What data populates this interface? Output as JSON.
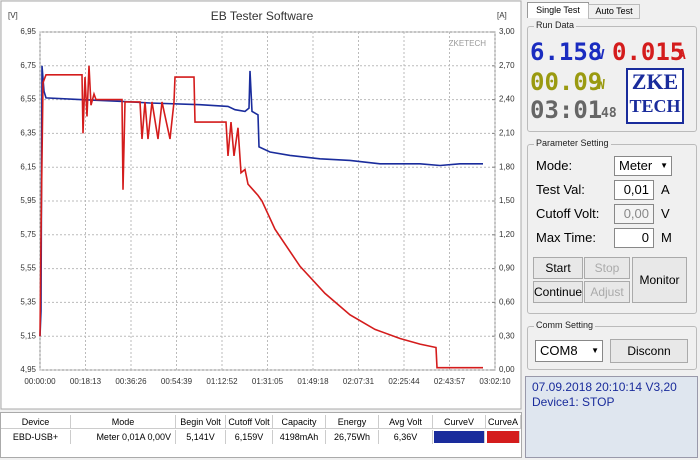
{
  "chart_data": {
    "type": "line",
    "title": "EB Tester Software",
    "y_label": "[V]",
    "y2_label": "[A]",
    "watermark": "ZKETECH",
    "xlim": [
      0,
      10930
    ],
    "xticks": [
      {
        "value": 0,
        "label": "00:00:00"
      },
      {
        "value": 1093,
        "label": "00:18:13"
      },
      {
        "value": 2186,
        "label": "00:36:26"
      },
      {
        "value": 3279,
        "label": "00:54:39"
      },
      {
        "value": 4372,
        "label": "01:12:52"
      },
      {
        "value": 5465,
        "label": "01:31:05"
      },
      {
        "value": 6558,
        "label": "01:49:18"
      },
      {
        "value": 7651,
        "label": "02:07:31"
      },
      {
        "value": 8744,
        "label": "02:25:44"
      },
      {
        "value": 9837,
        "label": "02:43:57"
      },
      {
        "value": 10930,
        "label": "03:02:10"
      }
    ],
    "ylim": [
      4.95,
      6.95
    ],
    "yticks": [
      {
        "value": 4.95,
        "label": "4,95"
      },
      {
        "value": 5.15,
        "label": "5,15"
      },
      {
        "value": 5.35,
        "label": "5,35"
      },
      {
        "value": 5.55,
        "label": "5,55"
      },
      {
        "value": 5.75,
        "label": "5,75"
      },
      {
        "value": 5.95,
        "label": "5,95"
      },
      {
        "value": 6.15,
        "label": "6,15"
      },
      {
        "value": 6.35,
        "label": "6,35"
      },
      {
        "value": 6.55,
        "label": "6,55"
      },
      {
        "value": 6.75,
        "label": "6,75"
      },
      {
        "value": 6.95,
        "label": "6,95"
      }
    ],
    "y2lim": [
      0,
      3
    ],
    "y2ticks": [
      {
        "value": 0,
        "label": "0,00"
      },
      {
        "value": 0.3,
        "label": "0,30"
      },
      {
        "value": 0.6,
        "label": "0,60"
      },
      {
        "value": 0.9,
        "label": "0,90"
      },
      {
        "value": 1.2,
        "label": "1,20"
      },
      {
        "value": 1.5,
        "label": "1,50"
      },
      {
        "value": 1.8,
        "label": "1,80"
      },
      {
        "value": 2.1,
        "label": "2,10"
      },
      {
        "value": 2.4,
        "label": "2,40"
      },
      {
        "value": 2.7,
        "label": "2,70"
      },
      {
        "value": 3,
        "label": "3,00"
      }
    ],
    "grid": true,
    "series": [
      {
        "name": "CurveV",
        "color": "#1a2c9c",
        "x": [
          0,
          24,
          48,
          96,
          144,
          961,
          1922,
          2642,
          3843,
          4516,
          4684,
          4924,
          5020,
          5044,
          5092,
          5236,
          5260,
          5525,
          6005,
          6726,
          7446,
          8167,
          9128,
          9608,
          10088,
          10641
        ],
        "values": [
          5.15,
          5.3,
          6.75,
          6.6,
          6.56,
          6.55,
          6.54,
          6.53,
          6.52,
          6.51,
          6.49,
          6.48,
          6.5,
          6.72,
          6.48,
          6.46,
          6.27,
          6.24,
          6.22,
          6.2,
          6.19,
          6.17,
          6.17,
          6.16,
          6.17,
          6.17
        ]
      },
      {
        "name": "CurveA",
        "color": "#d41c1c",
        "axis": "y2",
        "x": [
          0,
          24,
          72,
          144,
          1009,
          1033,
          1081,
          1129,
          1177,
          1225,
          1297,
          1345,
          1970,
          1994,
          2042,
          2402,
          2450,
          2522,
          2594,
          2690,
          2834,
          2930,
          3123,
          3219,
          3243,
          3699,
          3723,
          4468,
          4516,
          4588,
          4660,
          4756,
          4828,
          4924,
          4996,
          5236,
          5332,
          5645,
          6245,
          6846,
          7446,
          8047,
          8647,
          9128,
          9512,
          9536,
          10641
        ],
        "values": [
          0.3,
          1.2,
          2.55,
          2.62,
          2.62,
          2.1,
          2.6,
          2.25,
          2.7,
          2.35,
          2.45,
          2.4,
          2.4,
          1.6,
          2.38,
          2.38,
          2.05,
          2.38,
          2.05,
          2.38,
          2.05,
          2.38,
          2.05,
          2.38,
          2.6,
          2.6,
          2.2,
          2.2,
          1.9,
          2.2,
          1.9,
          2.15,
          1.75,
          1.78,
          1.65,
          1.55,
          1.5,
          1.25,
          0.92,
          0.68,
          0.49,
          0.36,
          0.28,
          0.23,
          0.2,
          0.02,
          0.02
        ]
      }
    ]
  },
  "tabs": [
    "Single Test",
    "Auto Test"
  ],
  "run_data": {
    "title": "Run Data",
    "voltage": "6.158",
    "voltage_unit": "V",
    "current": "0.015",
    "current_unit": "A",
    "power": "00.09",
    "power_unit": "W",
    "time": "03:01",
    "time_seconds": "48",
    "logo_top": "ZKE",
    "logo_bottom": "TECH"
  },
  "parameter": {
    "title": "Parameter Setting",
    "rows": [
      {
        "label": "Mode:",
        "value": "Meter"
      },
      {
        "label": "Test Val:",
        "value": "0,01",
        "unit": "A"
      },
      {
        "label": "Cutoff Volt:",
        "value": "0,00",
        "unit": "V"
      },
      {
        "label": "Max Time:",
        "value": "0",
        "unit": "M"
      }
    ],
    "buttons": {
      "start": "Start",
      "stop": "Stop",
      "continue": "Continue",
      "adjust": "Adjust",
      "monitor": "Monitor"
    }
  },
  "comm": {
    "title": "Comm Setting",
    "port": "COM8",
    "button": "Disconn"
  },
  "status": [
    "07.09.2018 20:10:14  V3,20",
    "Device1: STOP"
  ],
  "table": {
    "headers": [
      "Device",
      "Mode",
      "Begin Volt",
      "Cutoff Volt",
      "Capacity",
      "Energy",
      "Avg Volt"
    ],
    "row": [
      "EBD-USB+",
      "Meter 0,01A 0,00V",
      "5,141V",
      "6,159V",
      "4198mAh",
      "26,75Wh",
      "6,36V"
    ]
  }
}
